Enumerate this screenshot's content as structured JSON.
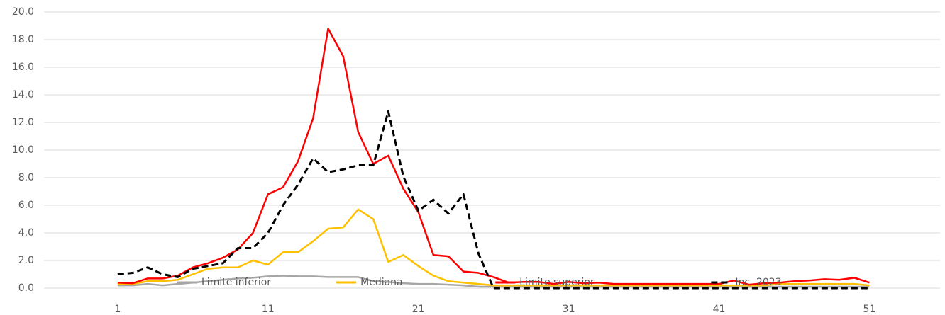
{
  "chart_data": {
    "type": "line",
    "x": [
      1,
      2,
      3,
      4,
      5,
      6,
      7,
      8,
      9,
      10,
      11,
      12,
      13,
      14,
      15,
      16,
      17,
      18,
      19,
      20,
      21,
      22,
      23,
      24,
      25,
      26,
      27,
      28,
      29,
      30,
      31,
      32,
      33,
      34,
      35,
      36,
      37,
      38,
      39,
      40,
      41,
      42,
      43,
      44,
      45,
      46,
      47,
      48,
      49,
      50,
      51
    ],
    "series": [
      {
        "name": "Limite inferior",
        "color": "#a6a6a6",
        "dash": false,
        "values": [
          0.2,
          0.2,
          0.3,
          0.2,
          0.3,
          0.4,
          0.5,
          0.6,
          0.7,
          0.75,
          0.85,
          0.9,
          0.85,
          0.85,
          0.8,
          0.8,
          0.8,
          0.5,
          0.45,
          0.35,
          0.3,
          0.3,
          0.25,
          0.2,
          0.1,
          0.1,
          0.1,
          0.1,
          0.1,
          0.1,
          0.1,
          0.1,
          0.1,
          0.1,
          0.1,
          0.1,
          0.1,
          0.1,
          0.1,
          0.1,
          0.1,
          0.1,
          0.1,
          0.1,
          0.1,
          0.1,
          0.1,
          0.1,
          0.1,
          0.1,
          0.1
        ]
      },
      {
        "name": "Mediana",
        "color": "#ffc000",
        "dash": false,
        "values": [
          0.3,
          0.3,
          0.5,
          0.5,
          0.6,
          1.0,
          1.4,
          1.5,
          1.5,
          2.0,
          1.7,
          2.6,
          2.6,
          3.4,
          4.3,
          4.4,
          5.7,
          5.0,
          1.9,
          2.4,
          1.6,
          0.9,
          0.5,
          0.4,
          0.3,
          0.2,
          0.2,
          0.2,
          0.2,
          0.2,
          0.2,
          0.2,
          0.2,
          0.2,
          0.2,
          0.2,
          0.2,
          0.2,
          0.2,
          0.2,
          0.2,
          0.2,
          0.2,
          0.2,
          0.3,
          0.3,
          0.3,
          0.3,
          0.3,
          0.3,
          0.2
        ]
      },
      {
        "name": "Limite superior",
        "color": "#ff0000",
        "dash": false,
        "values": [
          0.4,
          0.35,
          0.7,
          0.7,
          0.9,
          1.5,
          1.8,
          2.2,
          2.8,
          4.0,
          6.8,
          7.3,
          9.2,
          12.3,
          18.8,
          16.8,
          11.3,
          9.0,
          9.6,
          7.2,
          5.5,
          2.4,
          2.3,
          1.2,
          1.1,
          0.8,
          0.4,
          0.45,
          0.45,
          0.3,
          0.45,
          0.35,
          0.4,
          0.3,
          0.3,
          0.3,
          0.3,
          0.3,
          0.3,
          0.3,
          0.3,
          0.55,
          0.25,
          0.35,
          0.4,
          0.5,
          0.55,
          0.65,
          0.6,
          0.75,
          0.4
        ]
      },
      {
        "name": "Inc. 2023",
        "color": "#000000",
        "dash": true,
        "values": [
          1.0,
          1.1,
          1.5,
          1.0,
          0.8,
          1.4,
          1.6,
          1.8,
          2.9,
          2.9,
          4.0,
          6.0,
          7.5,
          9.4,
          8.4,
          8.6,
          8.9,
          8.9,
          12.8,
          8.1,
          5.6,
          6.4,
          5.4,
          6.8,
          2.5,
          0,
          0,
          0,
          0,
          0,
          0,
          0,
          0,
          0,
          0,
          0,
          0,
          0,
          0,
          0,
          0,
          0,
          0,
          0,
          0,
          0,
          0,
          0,
          0,
          0,
          0
        ]
      }
    ],
    "xlim": [
      -3.9,
      55.7
    ],
    "xticks": [
      1,
      11,
      21,
      31,
      41,
      51
    ],
    "ylim": [
      0,
      20
    ],
    "yticks": [
      {
        "value": 0,
        "label": "0.0"
      },
      {
        "value": 2,
        "label": "2.0"
      },
      {
        "value": 4,
        "label": "4.0"
      },
      {
        "value": 6,
        "label": "6.0"
      },
      {
        "value": 8,
        "label": "8.0"
      },
      {
        "value": 10,
        "label": "10.0"
      },
      {
        "value": 12,
        "label": "12.0"
      },
      {
        "value": 14,
        "label": "14.0"
      },
      {
        "value": 16,
        "label": "16.0"
      },
      {
        "value": 18,
        "label": "18.0"
      },
      {
        "value": 20,
        "label": "20.0"
      }
    ],
    "grid": true,
    "legend": "bottom"
  }
}
